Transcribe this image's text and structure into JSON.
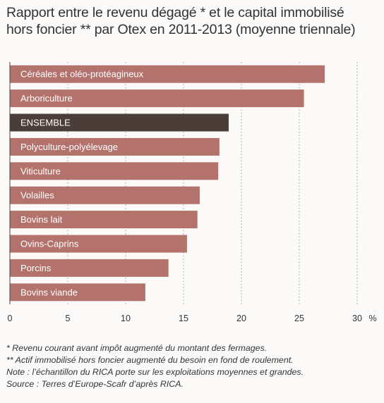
{
  "title": "Rapport entre le revenu dégagé * et le capital immobilisé hors foncier ** par Otex en 2011-2013 (moyenne triennale)",
  "notes": [
    "* Revenu courant avant impôt augmenté du montant des fermages.",
    "** Actif immobilisé hors foncier augmenté du besoin en fond de roulement.",
    "Note : l’échantillon du RICA porte sur les exploitations moyennes et grandes.",
    "Source : Terres d’Europe-Scafr d’après RICA."
  ],
  "colors": {
    "bar": "#b3736c",
    "highlight": "#4b3d38",
    "grid": "#9a9a9a"
  },
  "chart_data": {
    "type": "bar",
    "orientation": "horizontal",
    "categories": [
      "Céréales et oléo-protéagineux",
      "Arboriculture",
      "ENSEMBLE",
      "Polyculture-polyélevage",
      "Viticulture",
      "Volailles",
      "Bovins lait",
      "Ovins-Caprins",
      "Porcins",
      "Bovins viande"
    ],
    "values": [
      27.2,
      25.4,
      18.9,
      18.1,
      18.0,
      16.4,
      16.2,
      15.3,
      13.7,
      11.7
    ],
    "highlight": "ENSEMBLE",
    "xlim": [
      0,
      30
    ],
    "xticks": [
      0,
      5,
      10,
      15,
      20,
      25,
      30
    ],
    "xunit": "%",
    "grid": "vertical dotted"
  }
}
